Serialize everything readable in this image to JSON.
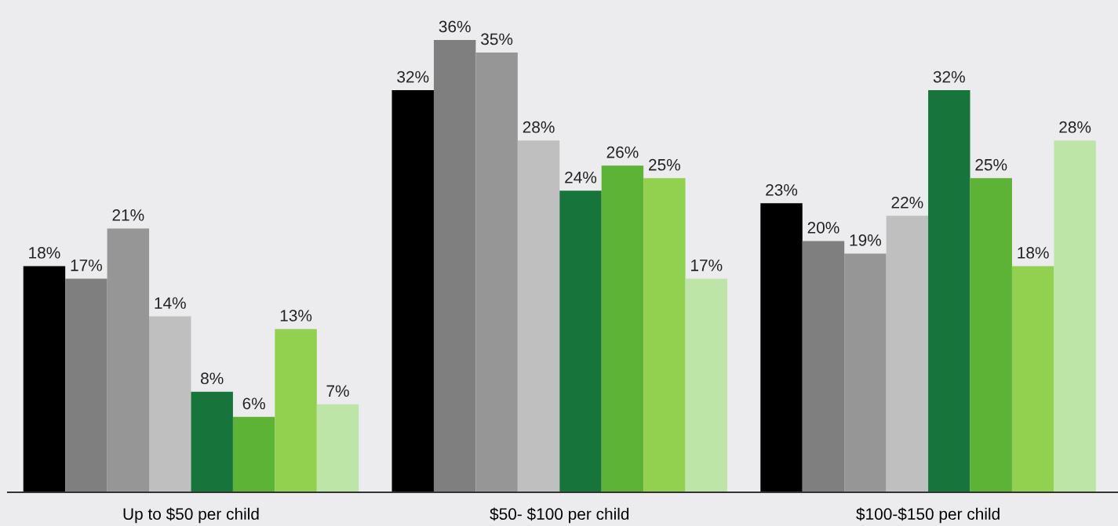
{
  "chart_data": {
    "type": "bar",
    "categories": [
      "Up to $50 per child",
      "$50- $100 per child",
      "$100-$150 per child"
    ],
    "series": [
      {
        "color": "#000000",
        "values": [
          18,
          32,
          23
        ],
        "value_labels": [
          "18%",
          "32%",
          "23%"
        ]
      },
      {
        "color": "#7f7f7f",
        "values": [
          17,
          36,
          20
        ],
        "value_labels": [
          "17%",
          "36%",
          "20%"
        ]
      },
      {
        "color": "#969696",
        "values": [
          21,
          35,
          19
        ],
        "value_labels": [
          "21%",
          "35%",
          "19%"
        ]
      },
      {
        "color": "#bfbfbf",
        "values": [
          14,
          28,
          22
        ],
        "value_labels": [
          "14%",
          "28%",
          "22%"
        ]
      },
      {
        "color": "#17743b",
        "values": [
          8,
          24,
          32
        ],
        "value_labels": [
          "8%",
          "24%",
          "32%"
        ]
      },
      {
        "color": "#5db336",
        "values": [
          6,
          26,
          25
        ],
        "value_labels": [
          "6%",
          "26%",
          "25%"
        ]
      },
      {
        "color": "#92d050",
        "values": [
          13,
          25,
          18
        ],
        "value_labels": [
          "13%",
          "25%",
          "18%"
        ]
      },
      {
        "color": "#bde5a8",
        "values": [
          7,
          17,
          28
        ],
        "value_labels": [
          "7%",
          "17%",
          "28%"
        ]
      }
    ],
    "grid": false,
    "legend": false,
    "tick_labels": "x"
  }
}
